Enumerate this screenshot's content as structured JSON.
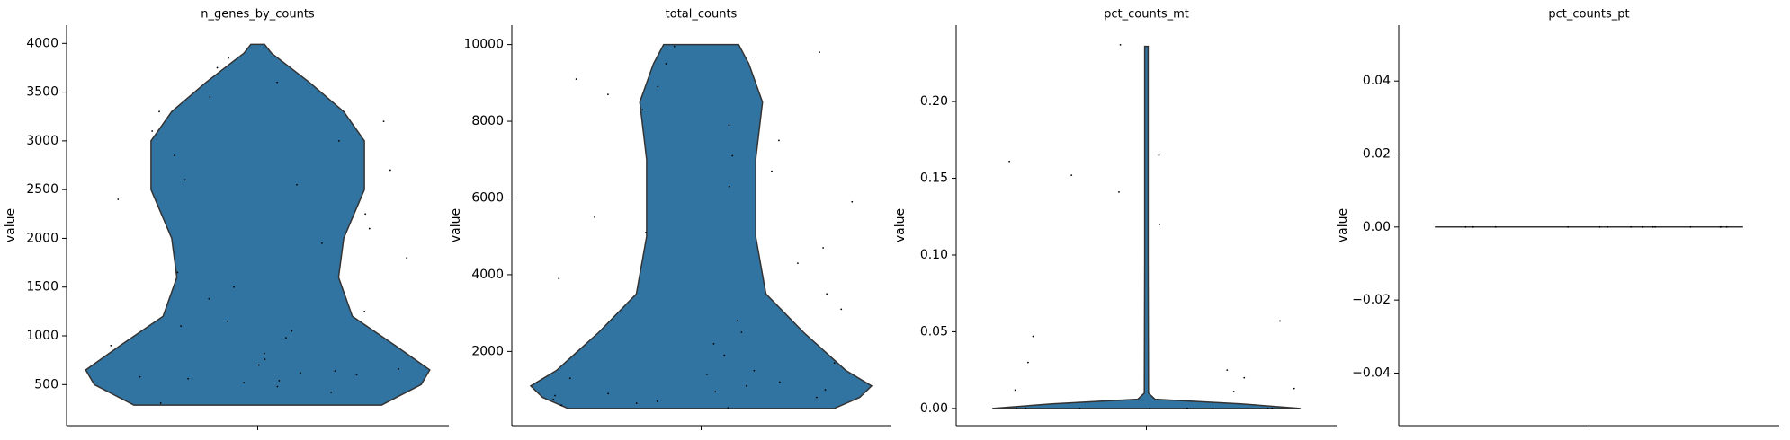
{
  "chart_data": [
    {
      "type": "violin",
      "title": "n_genes_by_counts",
      "ylabel": "value",
      "color": "#3274a1",
      "ylim": [
        79,
        4187
      ],
      "yticks": [
        500,
        1000,
        1500,
        2000,
        2500,
        3000,
        3500,
        4000
      ],
      "density": {
        "y": [
          290,
          500,
          650,
          900,
          1200,
          1600,
          2000,
          2500,
          3000,
          3300,
          3600,
          3900,
          3990
        ],
        "width": [
          0.72,
          0.95,
          1.0,
          0.8,
          0.55,
          0.47,
          0.5,
          0.62,
          0.62,
          0.5,
          0.3,
          0.08,
          0.04
        ]
      },
      "points": [
        310,
        420,
        480,
        520,
        560,
        600,
        640,
        700,
        760,
        820,
        900,
        980,
        1050,
        1150,
        1250,
        1380,
        1500,
        1650,
        1800,
        1950,
        2100,
        2250,
        2400,
        2550,
        2700,
        2850,
        3000,
        3100,
        3200,
        3300,
        3450,
        3600,
        3750,
        3850,
        540,
        580,
        620,
        660,
        1100,
        2600
      ]
    },
    {
      "type": "violin",
      "title": "total_counts",
      "ylabel": "value",
      "color": "#3274a1",
      "ylim": [
        66,
        10506
      ],
      "yticks": [
        2000,
        4000,
        6000,
        8000,
        10000
      ],
      "density": {
        "y": [
          512,
          800,
          1100,
          1500,
          2500,
          3500,
          5000,
          7000,
          8500,
          9500,
          10000
        ],
        "width": [
          0.78,
          0.93,
          1.0,
          0.85,
          0.6,
          0.38,
          0.32,
          0.32,
          0.36,
          0.28,
          0.22
        ]
      },
      "points": [
        530,
        600,
        700,
        800,
        900,
        1000,
        1100,
        1200,
        1300,
        1500,
        1700,
        1900,
        2200,
        2500,
        2800,
        3100,
        3500,
        3900,
        4300,
        4700,
        5100,
        5500,
        5900,
        6300,
        6700,
        7100,
        7500,
        7900,
        8300,
        8700,
        9100,
        9500,
        9800,
        9950,
        650,
        750,
        850,
        950,
        1400,
        8900
      ]
    },
    {
      "type": "violin",
      "title": "pct_counts_mt",
      "ylabel": "value",
      "color": "#3274a1",
      "ylim": [
        -0.0112,
        0.2498
      ],
      "yticks": [
        {
          "value": 0,
          "label": "0.00"
        },
        {
          "value": 0.05,
          "label": "0.05"
        },
        {
          "value": 0.1,
          "label": "0.10"
        },
        {
          "value": 0.15,
          "label": "0.15"
        },
        {
          "value": 0.2,
          "label": "0.20"
        }
      ],
      "density": {
        "y": [
          0,
          0.003,
          0.006,
          0.01,
          0.1,
          0.236
        ],
        "width": [
          0.9,
          0.55,
          0.05,
          0.012,
          0.01,
          0.01
        ]
      },
      "points": [
        0,
        0,
        0,
        0,
        0,
        0,
        0,
        0,
        0,
        0,
        0.047,
        0.012,
        0.161,
        0.152,
        0.165,
        0.12,
        0.237,
        0.141,
        0.057,
        0.03,
        0.02,
        0.025,
        0.013,
        0.011
      ]
    },
    {
      "type": "violin",
      "title": "pct_counts_pt",
      "ylabel": "value",
      "color": "#3274a1",
      "ylim": [
        -0.0544,
        0.0553
      ],
      "yticks": [
        {
          "value": -0.04,
          "label": "−0.04"
        },
        {
          "value": -0.02,
          "label": "−0.02"
        },
        {
          "value": 0,
          "label": "0.00"
        },
        {
          "value": 0.02,
          "label": "0.02"
        },
        {
          "value": 0.04,
          "label": "0.04"
        }
      ],
      "density": {
        "y": [
          0,
          0
        ],
        "width": [
          0.9,
          0.9
        ]
      },
      "points": [
        0,
        0,
        0,
        0,
        0,
        0,
        0,
        0,
        0,
        0,
        0,
        0,
        0,
        0,
        0
      ]
    }
  ]
}
